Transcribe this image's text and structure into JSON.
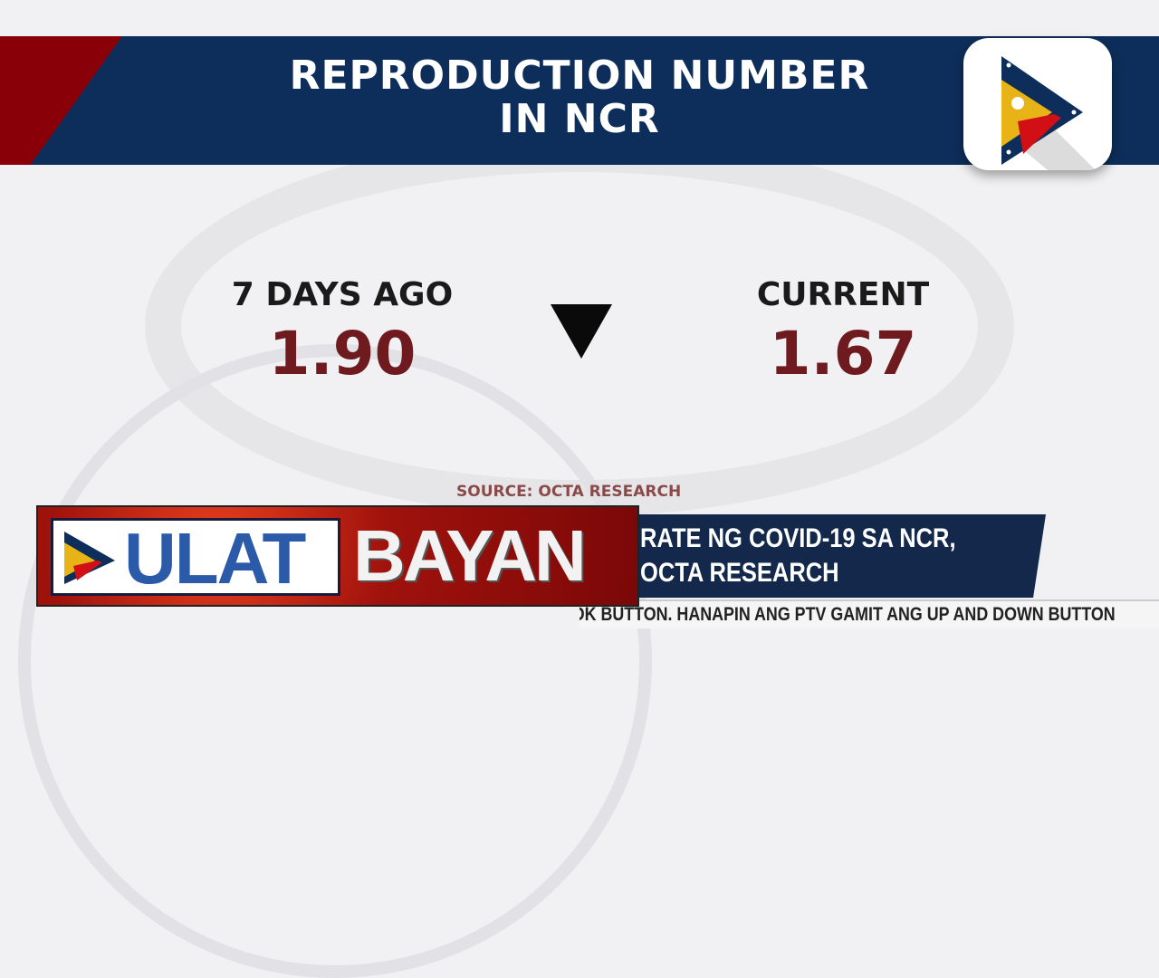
{
  "header": {
    "title_line1": "REPRODUCTION NUMBER",
    "title_line2": "IN NCR"
  },
  "stats": {
    "previous": {
      "label": "7 DAYS AGO",
      "value": "1.90"
    },
    "current": {
      "label": "CURRENT",
      "value": "1.67"
    },
    "trend_icon": "down-triangle-icon"
  },
  "source": "SOURCE: OCTA RESEARCH",
  "lower_third": {
    "program_part1": "ULAT",
    "program_part2": "BAYAN",
    "headline_line1": "RATE NG COVID-19 SA NCR,",
    "headline_line2": "OCTA RESEARCH",
    "ticker": "NG OK BUTTON. HANAPIN ANG PTV GAMIT ANG UP AND DOWN BUTTON"
  },
  "colors": {
    "navy": "#0d2e5a",
    "red": "#8a0008",
    "value": "#6e1a1f"
  }
}
